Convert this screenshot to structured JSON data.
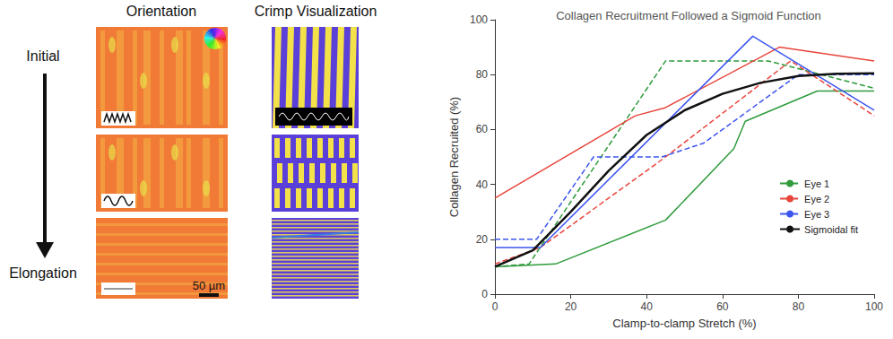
{
  "figure": {
    "row_labels": {
      "start": "Initial",
      "end": "Elongation"
    },
    "columns": [
      "Orientation",
      "Crimp Visualization"
    ],
    "scale_bar": "50 µm"
  },
  "chart_data": {
    "type": "line",
    "title": "Collagen Recruitment Followed a Sigmoid Function",
    "x_label": "Clamp-to-clamp Stretch (%)",
    "y_label": "Collagen Recruited (%)",
    "xlim": [
      0,
      100
    ],
    "xticks": [
      0,
      20,
      40,
      60,
      80,
      100
    ],
    "ylim": [
      0,
      100
    ],
    "yticks": [
      0,
      20,
      40,
      60,
      80,
      100
    ],
    "grid": false,
    "legend": "lower right",
    "series": [
      {
        "name": "Eye 1",
        "color": "#2e9b3c",
        "line_style": "dashed",
        "x": [
          0,
          9,
          45,
          72,
          100
        ],
        "values": [
          10,
          11,
          85,
          85,
          75
        ]
      },
      {
        "name": "Eye 1",
        "color": "#2e9b3c",
        "line_style": "solid",
        "x": [
          0,
          16,
          45,
          63,
          66,
          85,
          100
        ],
        "values": [
          10,
          11,
          27,
          53,
          63,
          74,
          74
        ]
      },
      {
        "name": "Eye 2",
        "color": "#e8453c",
        "line_style": "dashed",
        "x": [
          0,
          12,
          45,
          78,
          100
        ],
        "values": [
          11,
          17,
          50,
          85,
          65
        ]
      },
      {
        "name": "Eye 2",
        "color": "#e8453c",
        "line_style": "solid",
        "x": [
          0,
          37,
          45,
          75,
          100
        ],
        "values": [
          35,
          65,
          68,
          90,
          85
        ]
      },
      {
        "name": "Eye 3",
        "color": "#3b55ee",
        "line_style": "dashed",
        "x": [
          0,
          11,
          26,
          44,
          55,
          80,
          100
        ],
        "values": [
          20,
          20,
          50,
          50,
          55,
          80,
          80
        ]
      },
      {
        "name": "Eye 3",
        "color": "#3b55ee",
        "line_style": "solid",
        "x": [
          0,
          12,
          68,
          100
        ],
        "values": [
          17,
          17,
          94,
          67
        ]
      },
      {
        "name": "Sigmoidal fit",
        "color": "#111111",
        "line_style": "solid",
        "x": [
          0,
          10,
          20,
          30,
          40,
          50,
          60,
          70,
          80,
          90,
          100
        ],
        "values": [
          10,
          16,
          30,
          45,
          58,
          67,
          73,
          77,
          79.5,
          80.3,
          80.5
        ]
      }
    ]
  }
}
